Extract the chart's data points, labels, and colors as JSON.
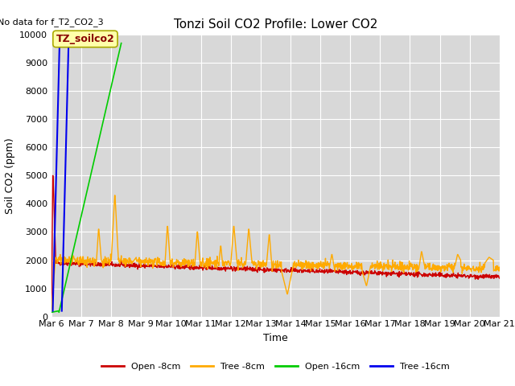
{
  "title": "Tonzi Soil CO2 Profile: Lower CO2",
  "no_data_text": "No data for f_T2_CO2_3",
  "annotation_text": "TZ_soilco2",
  "ylabel": "Soil CO2 (ppm)",
  "xlabel": "Time",
  "ylim": [
    0,
    10000
  ],
  "fig_bg_color": "#ffffff",
  "plot_bg_color": "#d8d8d8",
  "series": {
    "open_8cm": {
      "color": "#cc0000",
      "label": "Open -8cm",
      "lw": 1.0
    },
    "tree_8cm": {
      "color": "#ffaa00",
      "label": "Tree -8cm",
      "lw": 1.0
    },
    "open_16cm": {
      "color": "#00cc00",
      "label": "Open -16cm",
      "lw": 1.2
    },
    "tree_16cm": {
      "color": "#0000ee",
      "label": "Tree -16cm",
      "lw": 1.5
    }
  },
  "xtick_labels": [
    "Mar 6",
    "Mar 7",
    "Mar 8",
    "Mar 9",
    "Mar 10",
    "Mar 11",
    "Mar 12",
    "Mar 13",
    "Mar 14",
    "Mar 15",
    "Mar 16",
    "Mar 17",
    "Mar 18",
    "Mar 19",
    "Mar 20",
    "Mar 21"
  ],
  "ytick_labels": [
    "0",
    "1000",
    "2000",
    "3000",
    "4000",
    "5000",
    "6000",
    "7000",
    "8000",
    "9000",
    "10000"
  ],
  "grid_color": "#ffffff",
  "title_fontsize": 11,
  "axis_fontsize": 9,
  "tick_fontsize": 8,
  "no_data_fontsize": 8,
  "annot_fontsize": 9,
  "legend_fontsize": 8
}
